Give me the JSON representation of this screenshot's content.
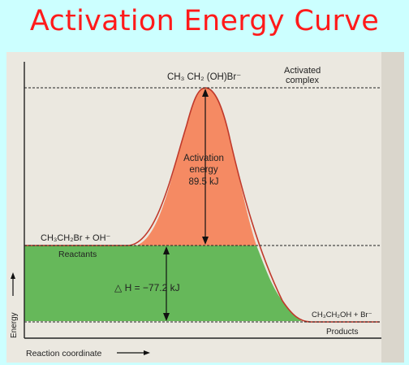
{
  "title": "Activation Energy Curve",
  "labels": {
    "complex_formula": "CH₃ CH₂ (OH)Br⁻",
    "complex_name_line1": "Activated",
    "complex_name_line2": "complex",
    "activation_line1": "Activation",
    "activation_line2": "energy",
    "activation_value": "89.5 kJ",
    "reactants_formula": "CH₃CH₂Br + OH⁻",
    "reactants_name": "Reactants",
    "delta_h": "△ H = −77.2 kJ",
    "products_formula": "CH₃CH₂OH + Br⁻",
    "products_name": "Products",
    "y_axis": "Energy",
    "x_axis": "Reaction coordinate"
  },
  "colors": {
    "background": "#ccffff",
    "title": "#ff1a1a",
    "page": "#ebe8e0",
    "activation_region": "#f58a63",
    "enthalpy_region": "#66b85a",
    "curve": "#c0392b"
  }
}
